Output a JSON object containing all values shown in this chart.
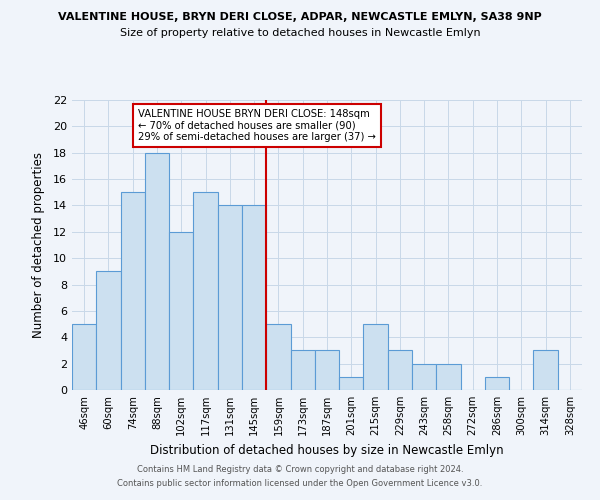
{
  "title": "VALENTINE HOUSE, BRYN DERI CLOSE, ADPAR, NEWCASTLE EMLYN, SA38 9NP",
  "subtitle": "Size of property relative to detached houses in Newcastle Emlyn",
  "xlabel": "Distribution of detached houses by size in Newcastle Emlyn",
  "ylabel": "Number of detached properties",
  "categories": [
    "46sqm",
    "60sqm",
    "74sqm",
    "88sqm",
    "102sqm",
    "117sqm",
    "131sqm",
    "145sqm",
    "159sqm",
    "173sqm",
    "187sqm",
    "201sqm",
    "215sqm",
    "229sqm",
    "243sqm",
    "258sqm",
    "272sqm",
    "286sqm",
    "300sqm",
    "314sqm",
    "328sqm"
  ],
  "values": [
    5,
    9,
    15,
    18,
    12,
    15,
    14,
    14,
    5,
    3,
    3,
    1,
    5,
    3,
    2,
    2,
    0,
    1,
    0,
    3,
    0
  ],
  "bar_color": "#cce0f0",
  "bar_edge_color": "#5b9bd5",
  "grid_color": "#c8d8e8",
  "red_line_x": 7.5,
  "annotation_text": "VALENTINE HOUSE BRYN DERI CLOSE: 148sqm\n← 70% of detached houses are smaller (90)\n29% of semi-detached houses are larger (37) →",
  "annotation_box_color": "#ffffff",
  "annotation_border_color": "#cc0000",
  "footer_line1": "Contains HM Land Registry data © Crown copyright and database right 2024.",
  "footer_line2": "Contains public sector information licensed under the Open Government Licence v3.0.",
  "ylim": [
    0,
    22
  ],
  "yticks": [
    0,
    2,
    4,
    6,
    8,
    10,
    12,
    14,
    16,
    18,
    20,
    22
  ],
  "background_color": "#f0f4fa"
}
